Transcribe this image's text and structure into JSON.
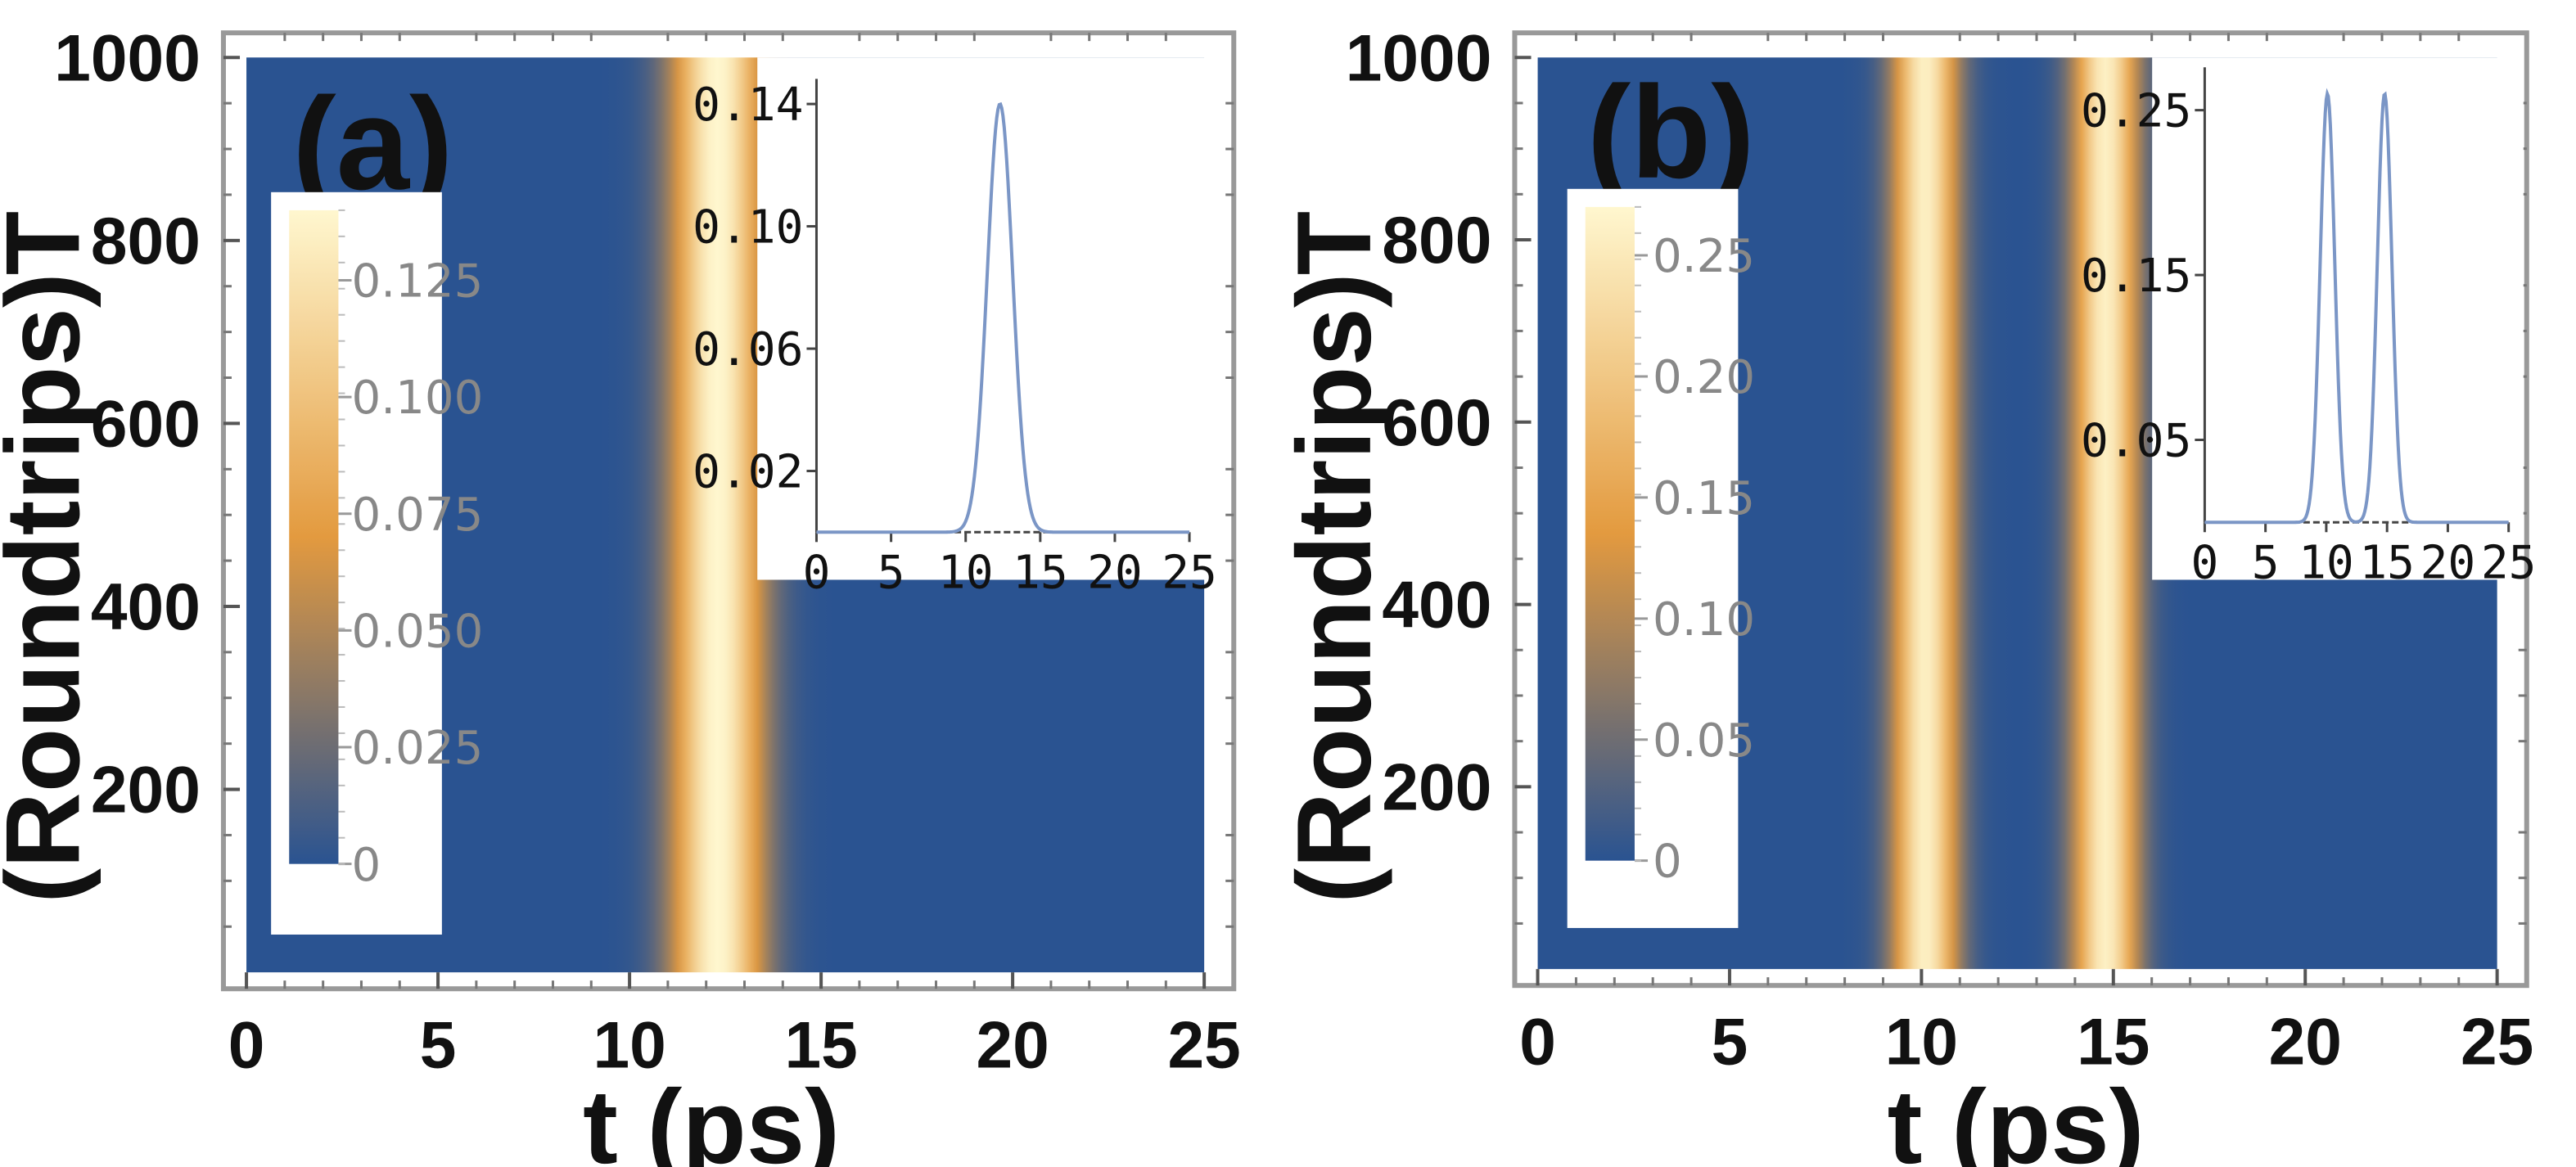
{
  "colors": {
    "map_low": "#2a5391",
    "map_mid": "#e39a3f",
    "map_high": "#fff7cf",
    "curve": "#7b96c6",
    "frame": "#999999"
  },
  "chart_data": [
    {
      "type": "heatmap",
      "panel_label": "(a)",
      "xlabel": "t (ps)",
      "ylabel_line1": "T",
      "ylabel_line2": "(Roundtrips)",
      "xlim": [
        0,
        25
      ],
      "ylim": [
        0,
        1000
      ],
      "x_ticks": [
        0,
        5,
        10,
        15,
        20,
        25
      ],
      "x_tick_labels": [
        "0",
        "5",
        "10",
        "15",
        "20",
        "25"
      ],
      "y_ticks": [
        200,
        400,
        600,
        800,
        1000
      ],
      "y_tick_labels": [
        "200",
        "400",
        "600",
        "800",
        "1000"
      ],
      "pulses": [
        {
          "center_ps": 12.3,
          "width_ps": 1.2,
          "peak": 0.14
        }
      ],
      "colorbar": {
        "range": [
          0,
          0.14
        ],
        "ticks": [
          0,
          0.025,
          0.05,
          0.075,
          0.1,
          0.125
        ],
        "tick_labels": [
          "0",
          "0.025",
          "0.050",
          "0.075",
          "0.100",
          "0.125"
        ]
      },
      "inset": {
        "type": "line",
        "xlim": [
          0,
          25
        ],
        "ylim": [
          0,
          0.145
        ],
        "x_ticks": [
          0,
          5,
          10,
          15,
          20,
          25
        ],
        "x_tick_labels": [
          "0",
          "5",
          "10",
          "15",
          "20",
          "25"
        ],
        "y_ticks": [
          0.02,
          0.06,
          0.1,
          0.14
        ],
        "y_tick_labels": [
          "0.02",
          "0.06",
          "0.10",
          "0.14"
        ]
      }
    },
    {
      "type": "heatmap",
      "panel_label": "(b)",
      "xlabel": "t (ps)",
      "ylabel_line1": "T",
      "ylabel_line2": "(Roundtrips)",
      "xlim": [
        0,
        25
      ],
      "ylim": [
        0,
        1000
      ],
      "x_ticks": [
        0,
        5,
        10,
        15,
        20,
        25
      ],
      "x_tick_labels": [
        "0",
        "5",
        "10",
        "15",
        "20",
        "25"
      ],
      "y_ticks": [
        200,
        400,
        600,
        800,
        1000
      ],
      "y_tick_labels": [
        "200",
        "400",
        "600",
        "800",
        "1000"
      ],
      "pulses": [
        {
          "center_ps": 10.1,
          "width_ps": 0.85,
          "peak": 0.26
        },
        {
          "center_ps": 14.8,
          "width_ps": 0.85,
          "peak": 0.26
        }
      ],
      "colorbar": {
        "range": [
          0,
          0.27
        ],
        "ticks": [
          0,
          0.05,
          0.1,
          0.15,
          0.2,
          0.25
        ],
        "tick_labels": [
          "0",
          "0.05",
          "0.10",
          "0.15",
          "0.20",
          "0.25"
        ]
      },
      "inset": {
        "type": "line",
        "xlim": [
          0,
          25
        ],
        "ylim": [
          0,
          0.27
        ],
        "x_ticks": [
          0,
          5,
          10,
          15,
          20,
          25
        ],
        "x_tick_labels": [
          "0",
          "5",
          "10",
          "15",
          "20",
          "25"
        ],
        "y_ticks": [
          0.05,
          0.15,
          0.25
        ],
        "y_tick_labels": [
          "0.05",
          "0.15",
          "0.25"
        ]
      }
    }
  ]
}
